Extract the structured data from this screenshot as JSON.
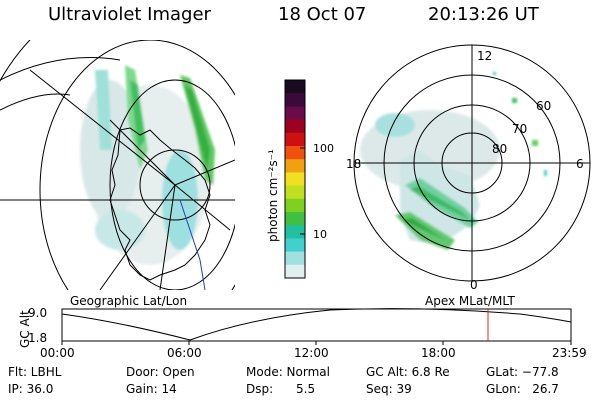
{
  "header": {
    "title": "Ultraviolet Imager",
    "date": "18 Oct 07",
    "time": "20:13:26 UT"
  },
  "geo_panel": {
    "label": "Geographic Lat/Lon"
  },
  "polar_panel": {
    "label": "Apex MLat/MLT",
    "mlt_top": "12",
    "mlt_bottom": "0",
    "mlt_left": "18",
    "mlt_right": "6",
    "lat_rings": [
      "60",
      "70",
      "80"
    ]
  },
  "colorbar": {
    "unit_label": "photon cm⁻²s⁻¹",
    "ticks": [
      "100",
      "10"
    ],
    "colors": [
      "#1a0a20",
      "#3a0a3a",
      "#6a0a4a",
      "#a00020",
      "#d01010",
      "#f05010",
      "#f0a010",
      "#f0e020",
      "#c0e020",
      "#80d020",
      "#40c040",
      "#20c0a0",
      "#40d0d0",
      "#a0e0e0",
      "#e0f0f0"
    ]
  },
  "altitude": {
    "axis_label": "GC Alt",
    "y_max": "9.0",
    "y_min": "1.8",
    "x_ticks": [
      "00:00",
      "06:00",
      "12:00",
      "18:00",
      "23:59"
    ]
  },
  "info": {
    "flt": "Flt: LBHL",
    "ip": "IP: 36.0",
    "door": "Door: Open",
    "gain": "Gain: 14",
    "mode": "Mode: Normal",
    "dsp": "Dsp:      5.5",
    "gcalt": "GC Alt: 6.8 Re",
    "seq": "Seq: 39",
    "glat": "GLat: −77.8",
    "glon": "GLon:   26.7"
  }
}
